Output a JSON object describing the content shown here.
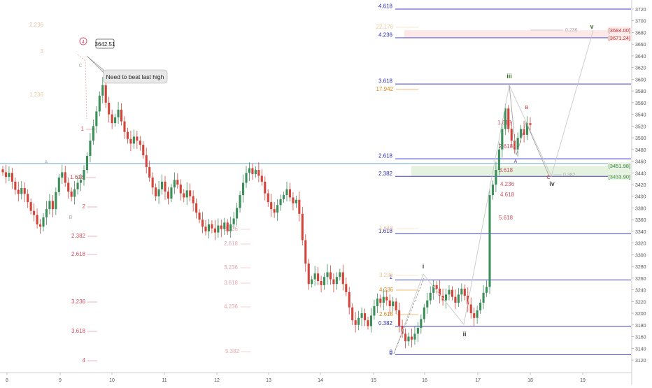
{
  "chart_data": {
    "type": "candlestick",
    "title": "",
    "xlabel": "",
    "ylabel": "",
    "ylim": [
      3105,
      3730
    ],
    "x_ticks": [
      "8",
      "9",
      "10",
      "11",
      "12",
      "13",
      "14",
      "15",
      "16",
      "17",
      "18",
      "19"
    ],
    "y_ticks": [
      3120,
      3140,
      3160,
      3180,
      3200,
      3220,
      3240,
      3260,
      3280,
      3300,
      3320,
      3340,
      3360,
      3380,
      3400,
      3420,
      3440,
      3460,
      3480,
      3500,
      3520,
      3540,
      3560,
      3580,
      3600,
      3620,
      3640,
      3660,
      3680,
      3700,
      3720
    ],
    "price_labels": [
      {
        "text": "[3684.00]",
        "value": 3684,
        "color": "#c62828"
      },
      {
        "text": "[3671.24]",
        "value": 3671.24,
        "color": "#c62828"
      },
      {
        "text": "[3451.98]",
        "value": 3451.98,
        "color": "#2e7d32"
      },
      {
        "text": "[3433.90]",
        "value": 3433.9,
        "color": "#2e7d32"
      }
    ],
    "blue_fib_levels": [
      {
        "label": "4.618",
        "value": 3720
      },
      {
        "label": "4.236",
        "value": 3671
      },
      {
        "label": "3.618",
        "value": 3592
      },
      {
        "label": "2.618",
        "value": 3464
      },
      {
        "label": "2.382",
        "value": 3434
      },
      {
        "label": "1.618",
        "value": 3336
      },
      {
        "label": "1",
        "value": 3257
      },
      {
        "label": "0.382",
        "value": 3178
      },
      {
        "label": "0",
        "value": 3129
      }
    ],
    "faint_left_labels": [
      "2.236",
      "3",
      "1.236",
      "1.618",
      "2",
      "2.382",
      "2.618",
      "3.236",
      "3.618",
      "4"
    ],
    "faint_mid_labels": [
      "2.236",
      "2.618",
      "3.236",
      "3.618",
      "4.236",
      "5.382"
    ],
    "orange_labels": [
      "17.942",
      "22.176",
      "4.236",
      "3.236",
      "2.618",
      "1.618"
    ],
    "red_fib_labels": [
      "1.618",
      "2.618",
      "3.618",
      "4.236",
      "4.618",
      "5.618"
    ],
    "wave_labels": {
      "i": "i",
      "ii": "ii",
      "iii": "iii",
      "iv": "iv",
      "v": "v",
      "a": "A",
      "b": "B",
      "c": "C",
      "circle4": "4"
    },
    "annotations": {
      "high_price": "3642.51",
      "beat_high": "Need to beat last high",
      "mid_ratio": "0.382",
      "top_ratio": "0.236",
      "letter_a_left": "A",
      "letter_b_left": "B",
      "letter_c_left": "C"
    },
    "horizontal_line_value": 3456,
    "zones": [
      {
        "from": 3671.24,
        "to": 3684,
        "color": "#fde8e8"
      },
      {
        "from": 3433.9,
        "to": 3451.98,
        "color": "#e6f2e0"
      }
    ],
    "candles": [
      [
        3446,
        3441
      ],
      [
        3441,
        3433
      ],
      [
        3433,
        3440
      ],
      [
        3440,
        3425
      ],
      [
        3425,
        3411
      ],
      [
        3411,
        3404
      ],
      [
        3404,
        3414
      ],
      [
        3414,
        3404
      ],
      [
        3404,
        3390
      ],
      [
        3390,
        3375
      ],
      [
        3375,
        3368
      ],
      [
        3368,
        3352
      ],
      [
        3352,
        3348
      ],
      [
        3348,
        3364
      ],
      [
        3364,
        3378
      ],
      [
        3378,
        3392
      ],
      [
        3392,
        3378
      ],
      [
        3378,
        3407
      ],
      [
        3407,
        3432
      ],
      [
        3432,
        3441
      ],
      [
        3441,
        3423
      ],
      [
        3423,
        3408
      ],
      [
        3408,
        3399
      ],
      [
        3399,
        3412
      ],
      [
        3412,
        3423
      ],
      [
        3423,
        3428
      ],
      [
        3428,
        3445
      ],
      [
        3445,
        3469
      ],
      [
        3469,
        3495
      ],
      [
        3495,
        3520
      ],
      [
        3520,
        3545
      ],
      [
        3545,
        3572
      ],
      [
        3572,
        3590
      ],
      [
        3590,
        3560
      ],
      [
        3560,
        3540
      ],
      [
        3540,
        3525
      ],
      [
        3525,
        3535
      ],
      [
        3535,
        3548
      ],
      [
        3548,
        3528
      ],
      [
        3528,
        3510
      ],
      [
        3510,
        3498
      ],
      [
        3498,
        3490
      ],
      [
        3490,
        3502
      ],
      [
        3502,
        3495
      ],
      [
        3495,
        3488
      ],
      [
        3488,
        3470
      ],
      [
        3470,
        3450
      ],
      [
        3450,
        3432
      ],
      [
        3432,
        3415
      ],
      [
        3415,
        3400
      ],
      [
        3400,
        3412
      ],
      [
        3412,
        3425
      ],
      [
        3425,
        3408
      ],
      [
        3408,
        3396
      ],
      [
        3396,
        3415
      ],
      [
        3415,
        3428
      ],
      [
        3428,
        3420
      ],
      [
        3420,
        3405
      ],
      [
        3405,
        3398
      ],
      [
        3398,
        3410
      ],
      [
        3410,
        3400
      ],
      [
        3400,
        3388
      ],
      [
        3388,
        3372
      ],
      [
        3372,
        3360
      ],
      [
        3360,
        3348
      ],
      [
        3348,
        3340
      ],
      [
        3340,
        3352
      ],
      [
        3352,
        3345
      ],
      [
        3345,
        3338
      ],
      [
        3338,
        3350
      ],
      [
        3350,
        3344
      ],
      [
        3344,
        3355
      ],
      [
        3355,
        3340
      ],
      [
        3340,
        3352
      ],
      [
        3352,
        3362
      ],
      [
        3362,
        3380
      ],
      [
        3380,
        3402
      ],
      [
        3402,
        3423
      ],
      [
        3423,
        3440
      ],
      [
        3440,
        3448
      ],
      [
        3448,
        3438
      ],
      [
        3438,
        3445
      ],
      [
        3445,
        3435
      ],
      [
        3435,
        3425
      ],
      [
        3425,
        3405
      ],
      [
        3405,
        3390
      ],
      [
        3390,
        3378
      ],
      [
        3378,
        3372
      ],
      [
        3372,
        3385
      ],
      [
        3385,
        3395
      ],
      [
        3395,
        3402
      ],
      [
        3402,
        3412
      ],
      [
        3412,
        3398
      ],
      [
        3398,
        3388
      ],
      [
        3388,
        3394
      ],
      [
        3394,
        3370
      ],
      [
        3370,
        3325
      ],
      [
        3325,
        3285
      ],
      [
        3285,
        3250
      ],
      [
        3250,
        3258
      ],
      [
        3258,
        3268
      ],
      [
        3268,
        3255
      ],
      [
        3255,
        3248
      ],
      [
        3248,
        3262
      ],
      [
        3262,
        3270
      ],
      [
        3270,
        3258
      ],
      [
        3258,
        3250
      ],
      [
        3250,
        3262
      ],
      [
        3262,
        3270
      ],
      [
        3270,
        3250
      ],
      [
        3250,
        3236
      ],
      [
        3236,
        3210
      ],
      [
        3210,
        3188
      ],
      [
        3188,
        3180
      ],
      [
        3180,
        3192
      ],
      [
        3192,
        3200
      ],
      [
        3200,
        3188
      ],
      [
        3188,
        3178
      ],
      [
        3178,
        3196
      ],
      [
        3196,
        3212
      ],
      [
        3212,
        3225
      ],
      [
        3225,
        3218
      ],
      [
        3218,
        3228
      ],
      [
        3228,
        3222
      ],
      [
        3222,
        3212
      ],
      [
        3212,
        3220
      ],
      [
        3220,
        3205
      ],
      [
        3205,
        3178
      ],
      [
        3178,
        3165
      ],
      [
        3165,
        3152
      ],
      [
        3152,
        3160
      ],
      [
        3160,
        3155
      ],
      [
        3155,
        3165
      ],
      [
        3165,
        3175
      ],
      [
        3175,
        3190
      ],
      [
        3190,
        3210
      ],
      [
        3210,
        3222
      ],
      [
        3222,
        3235
      ],
      [
        3235,
        3248
      ],
      [
        3248,
        3242
      ],
      [
        3242,
        3230
      ],
      [
        3230,
        3222
      ],
      [
        3222,
        3232
      ],
      [
        3232,
        3240
      ],
      [
        3240,
        3228
      ],
      [
        3228,
        3218
      ],
      [
        3218,
        3232
      ],
      [
        3232,
        3242
      ],
      [
        3242,
        3230
      ],
      [
        3230,
        3215
      ],
      [
        3215,
        3200
      ],
      [
        3200,
        3192
      ],
      [
        3192,
        3205
      ],
      [
        3205,
        3218
      ],
      [
        3218,
        3235
      ],
      [
        3235,
        3245
      ],
      [
        3245,
        3402
      ],
      [
        3402,
        3420
      ],
      [
        3420,
        3445
      ],
      [
        3445,
        3480
      ],
      [
        3480,
        3515
      ],
      [
        3515,
        3550
      ],
      [
        3550,
        3515
      ],
      [
        3515,
        3495
      ],
      [
        3495,
        3480
      ],
      [
        3480,
        3500
      ],
      [
        3500,
        3515
      ],
      [
        3515,
        3505
      ],
      [
        3505,
        3525
      ],
      [
        3525,
        3522
      ]
    ]
  }
}
